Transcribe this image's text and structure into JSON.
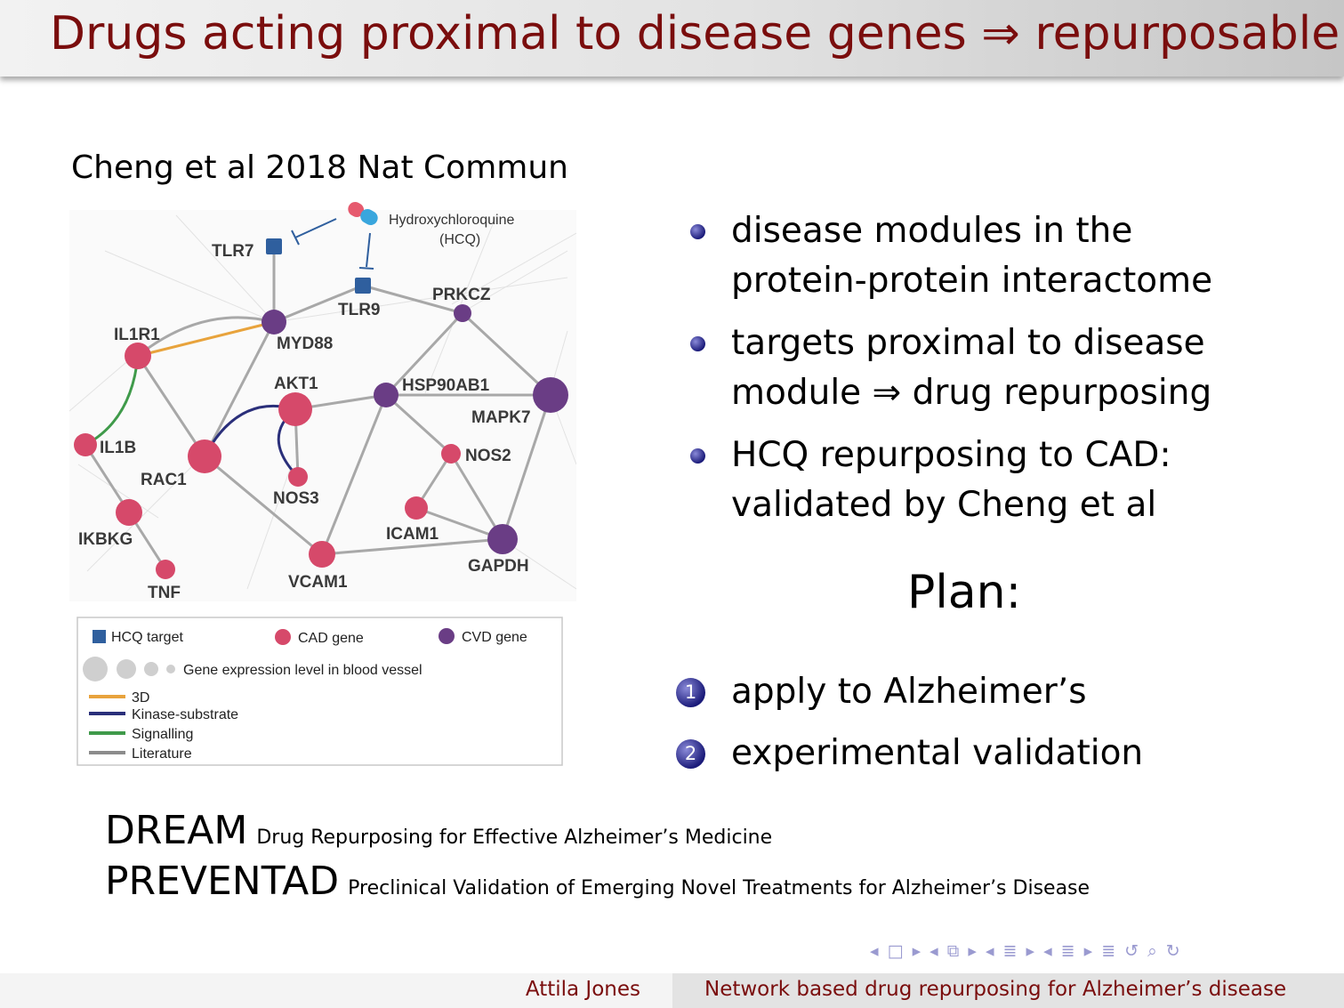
{
  "title": "Drugs acting proximal to disease genes ⇒ repurposable",
  "citation": "Cheng et al 2018 Nat Commun",
  "figure": {
    "drug_label_1": "Hydroxychloroquine",
    "drug_label_2": "(HCQ)",
    "nodes": {
      "tlr7": "TLR7",
      "tlr9": "TLR9",
      "prkcz": "PRKCZ",
      "il1r1": "IL1R1",
      "myd88": "MYD88",
      "akt1": "AKT1",
      "hsp90ab1": "HSP90AB1",
      "mapk7": "MAPK7",
      "il1b": "IL1B",
      "rac1": "RAC1",
      "nos2": "NOS2",
      "nos3": "NOS3",
      "icam1": "ICAM1",
      "ikbkg": "IKBKG",
      "gapdh": "GAPDH",
      "vcam1": "VCAM1",
      "tnf": "TNF"
    },
    "legend": {
      "hcq_target": "HCQ target",
      "cad_gene": "CAD gene",
      "cvd_gene": "CVD gene",
      "expression": "Gene expression level in blood vessel",
      "edge_3d": "3D",
      "edge_kinase": "Kinase-substrate",
      "edge_signalling": "Signalling",
      "edge_literature": "Literature"
    },
    "colors": {
      "hcq_target": "#2f5f9e",
      "cad_gene": "#d6496a",
      "cvd_gene": "#6a3d85",
      "edge_3d": "#e8a33c",
      "edge_kinase": "#2a2f7a",
      "edge_signalling": "#3f9a4a",
      "edge_literature": "#9a9a9a"
    }
  },
  "bullets": [
    {
      "line1": "disease modules in the",
      "line2": "protein-protein interactome"
    },
    {
      "line1": "targets proximal to disease",
      "line2": "module ⇒ drug repurposing"
    },
    {
      "line1": "HCQ repurposing to CAD:",
      "line2": "validated by Cheng et al"
    }
  ],
  "plan_heading": "Plan:",
  "plan_items": [
    {
      "num": "1",
      "text": "apply to Alzheimer’s"
    },
    {
      "num": "2",
      "text": "experimental validation"
    }
  ],
  "acronyms": [
    {
      "name": "DREAM",
      "expansion": "Drug Repurposing for Effective Alzheimer’s Medicine"
    },
    {
      "name": "PREVENTAD",
      "expansion": "Preclinical Validation of Emerging Novel Treatments for Alzheimer’s Disease"
    }
  ],
  "footer": {
    "author": "Attila Jones",
    "talk_title": "Network based drug repurposing for Alzheimer’s disease"
  }
}
